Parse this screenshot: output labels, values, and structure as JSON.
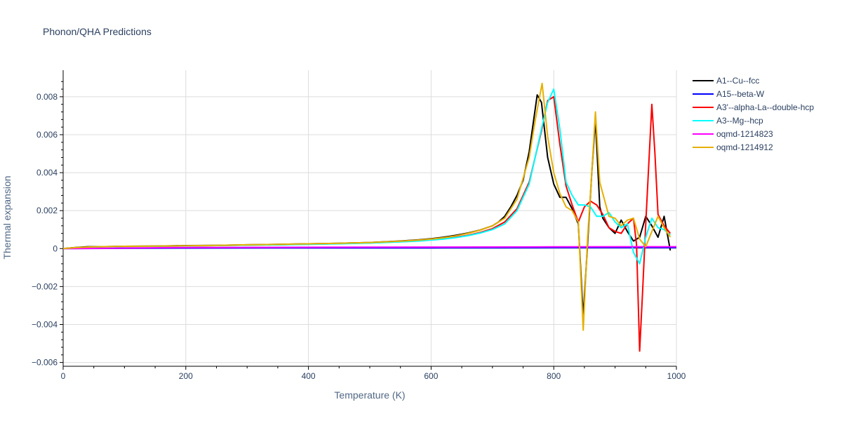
{
  "chart_data": {
    "type": "line",
    "title": "Phonon/QHA Predictions",
    "xlabel": "Temperature (K)",
    "ylabel": "Thermal expansion",
    "xlim": [
      0,
      1000
    ],
    "ylim": [
      -0.0062,
      0.0094
    ],
    "x_ticks": [
      0,
      200,
      400,
      600,
      800,
      1000
    ],
    "x_tick_labels": [
      "0",
      "200",
      "400",
      "600",
      "800",
      "1000"
    ],
    "y_ticks": [
      -0.006,
      -0.004,
      -0.002,
      0,
      0.002,
      0.004,
      0.006,
      0.008
    ],
    "y_tick_labels": [
      "−0.006",
      "−0.004",
      "−0.002",
      "0",
      "0.002",
      "0.004",
      "0.006",
      "0.008"
    ],
    "grid": true,
    "legend_position": "top-right",
    "series": [
      {
        "name": "A1--Cu--fcc",
        "color": "#000000",
        "x": [
          0,
          20,
          40,
          60,
          100,
          150,
          200,
          250,
          300,
          350,
          400,
          450,
          500,
          550,
          580,
          600,
          620,
          640,
          660,
          680,
          700,
          710,
          720,
          730,
          740,
          750,
          760,
          773,
          780,
          790,
          800,
          810,
          820,
          830,
          840,
          848,
          855,
          862,
          868,
          875,
          880,
          890,
          900,
          910,
          920,
          930,
          940,
          950,
          960,
          970,
          980,
          985,
          990
        ],
        "y": [
          0,
          6e-05,
          0.0001,
          0.0001,
          0.00012,
          0.00013,
          0.00016,
          0.00017,
          0.0002,
          0.00022,
          0.00025,
          0.00028,
          0.00032,
          0.0004,
          0.00046,
          0.00052,
          0.0006,
          0.0007,
          0.00082,
          0.00098,
          0.0012,
          0.0014,
          0.0017,
          0.0022,
          0.0028,
          0.0036,
          0.0051,
          0.0081,
          0.0077,
          0.0048,
          0.0034,
          0.0027,
          0.0027,
          0.0021,
          0.0013,
          -0.0036,
          0.0002,
          0.004,
          0.0068,
          0.0022,
          0.0016,
          0.0011,
          0.0008,
          0.0015,
          0.0009,
          0.0004,
          0.0006,
          0.0017,
          0.0012,
          0.0006,
          0.0017,
          0.0008,
          -0.0001
        ]
      },
      {
        "name": "A15--beta-W",
        "color": "#0000ff",
        "x": [
          0,
          200,
          400,
          600,
          800,
          1000
        ],
        "y": [
          0,
          3e-05,
          4e-05,
          4e-05,
          5e-05,
          5e-05
        ]
      },
      {
        "name": "A3'--alpha-La--double-hcp",
        "color": "#ff0000",
        "x": [
          0,
          20,
          40,
          60,
          100,
          150,
          200,
          250,
          300,
          350,
          400,
          450,
          500,
          550,
          580,
          600,
          620,
          640,
          660,
          680,
          700,
          720,
          740,
          760,
          780,
          790,
          800,
          810,
          820,
          830,
          840,
          850,
          860,
          870,
          880,
          890,
          900,
          910,
          920,
          930,
          935,
          940,
          945,
          950,
          955,
          960,
          965,
          970,
          980,
          990
        ],
        "y": [
          0,
          4e-05,
          7e-05,
          9e-05,
          0.00011,
          0.00012,
          0.00014,
          0.00016,
          0.00018,
          0.0002,
          0.00023,
          0.00026,
          0.0003,
          0.00036,
          0.00041,
          0.00046,
          0.00052,
          0.0006,
          0.0007,
          0.00085,
          0.00105,
          0.0014,
          0.0021,
          0.0035,
          0.0062,
          0.0078,
          0.008,
          0.0055,
          0.0033,
          0.0023,
          0.0014,
          0.0022,
          0.0025,
          0.0023,
          0.0018,
          0.0011,
          0.0009,
          0.0008,
          0.0013,
          0.0016,
          0.0002,
          -0.0054,
          -0.0022,
          0.0013,
          0.0045,
          0.0076,
          0.005,
          0.0018,
          0.0012,
          0.0008
        ]
      },
      {
        "name": "A3--Mg--hcp",
        "color": "#00ffff",
        "x": [
          0,
          20,
          40,
          60,
          100,
          150,
          200,
          250,
          300,
          350,
          400,
          450,
          500,
          550,
          580,
          600,
          620,
          640,
          660,
          680,
          700,
          720,
          740,
          760,
          780,
          790,
          800,
          810,
          820,
          830,
          840,
          850,
          860,
          870,
          880,
          890,
          900,
          910,
          920,
          930,
          940,
          950,
          960,
          970,
          980,
          990
        ],
        "y": [
          0,
          4e-05,
          7e-05,
          9e-05,
          0.00011,
          0.00012,
          0.00014,
          0.00016,
          0.00018,
          0.0002,
          0.00022,
          0.00025,
          0.00029,
          0.00035,
          0.0004,
          0.00045,
          0.0005,
          0.00058,
          0.00068,
          0.00082,
          0.001,
          0.0013,
          0.002,
          0.0034,
          0.0063,
          0.0077,
          0.0084,
          0.0063,
          0.0035,
          0.0028,
          0.0023,
          0.0023,
          0.0022,
          0.0017,
          0.0017,
          0.0019,
          0.0014,
          0.0011,
          0.0013,
          -0.0002,
          -0.0008,
          0.0006,
          0.0016,
          0.0011,
          0.001,
          0.0007
        ]
      },
      {
        "name": "oqmd-1214823",
        "color": "#ff00ff",
        "x": [
          0,
          200,
          400,
          600,
          800,
          1000
        ],
        "y": [
          0,
          6e-05,
          7e-05,
          8e-05,
          9e-05,
          0.0001
        ]
      },
      {
        "name": "oqmd-1214912",
        "color": "#e6b000",
        "x": [
          0,
          20,
          40,
          60,
          100,
          150,
          200,
          250,
          300,
          350,
          400,
          450,
          500,
          550,
          580,
          600,
          620,
          640,
          660,
          680,
          700,
          720,
          740,
          760,
          770,
          781,
          790,
          800,
          810,
          820,
          830,
          840,
          848,
          855,
          862,
          868,
          875,
          880,
          890,
          900,
          910,
          920,
          930,
          940,
          950,
          960,
          970,
          980,
          990
        ],
        "y": [
          0,
          5e-05,
          8e-05,
          0.0001,
          0.00012,
          0.00013,
          0.00015,
          0.00017,
          0.0002,
          0.00022,
          0.00025,
          0.00028,
          0.00032,
          0.00039,
          0.00045,
          0.0005,
          0.00057,
          0.00067,
          0.0008,
          0.00097,
          0.0012,
          0.0016,
          0.0026,
          0.0048,
          0.0068,
          0.0087,
          0.0059,
          0.004,
          0.0029,
          0.0022,
          0.002,
          0.0014,
          -0.0043,
          0.0005,
          0.004,
          0.0072,
          0.0035,
          0.0029,
          0.0017,
          0.0016,
          0.0012,
          0.0015,
          0.0016,
          0.0005,
          0.0001,
          0.0009,
          0.0017,
          0.0011,
          0.0006
        ]
      }
    ]
  }
}
